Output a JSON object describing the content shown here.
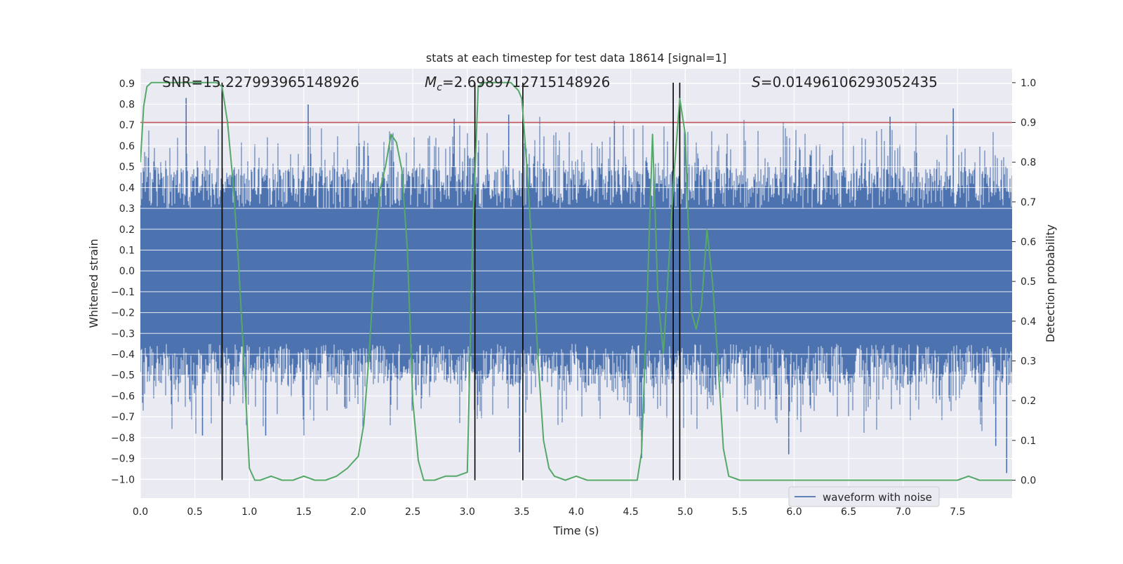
{
  "chart_data": {
    "type": "line",
    "title": "stats at each timestep for test data 18614 [signal=1]",
    "xlabel": "Time (s)",
    "ylabel": "Whitened strain",
    "ylabel_right": "Detection probability",
    "xlim": [
      0.0,
      8.0
    ],
    "ylim": [
      -1.09,
      0.97
    ],
    "ylim_right": [
      -0.045,
      1.035
    ],
    "x_ticks": [
      "0.0",
      "0.5",
      "1.0",
      "1.5",
      "2.0",
      "2.5",
      "3.0",
      "3.5",
      "4.0",
      "4.5",
      "5.0",
      "5.5",
      "6.0",
      "6.5",
      "7.0",
      "7.5"
    ],
    "y_ticks": [
      "0.9",
      "0.8",
      "0.7",
      "0.6",
      "0.5",
      "0.4",
      "0.3",
      "0.2",
      "0.1",
      "0.0",
      "−0.1",
      "−0.2",
      "−0.3",
      "−0.4",
      "−0.5",
      "−0.6",
      "−0.7",
      "−0.8",
      "−0.9",
      "−1.0"
    ],
    "y_right_ticks": [
      "1.0",
      "0.9",
      "0.8",
      "0.7",
      "0.6",
      "0.5",
      "0.4",
      "0.3",
      "0.2",
      "0.1",
      "0.0"
    ],
    "annotations": {
      "snr": "SNR=15.227993965148926",
      "mc_symbol": "M",
      "mc_subscript": "c",
      "mc_value": "=2.6989712715148926",
      "s_symbol": "S",
      "s_value": "=0.01496106293052435"
    },
    "threshold": {
      "value": 0.9,
      "axis": "right",
      "color": "#c44e52"
    },
    "event_lines_x": [
      0.75,
      3.07,
      3.51,
      4.89,
      4.95
    ],
    "legend": {
      "label": "waveform with noise",
      "placement": "lower-right"
    },
    "series": [
      {
        "name": "waveform with noise",
        "axis": "left",
        "color": "#4c72b0",
        "render": "noise-band",
        "core_range": [
          -0.35,
          0.3
        ],
        "peak_spikes": [
          {
            "x": 0.42,
            "y": 0.83
          },
          {
            "x": 1.54,
            "y": 0.8
          },
          {
            "x": 2.88,
            "y": 0.73
          },
          {
            "x": 3.38,
            "y": 0.75
          },
          {
            "x": 4.35,
            "y": 0.72
          },
          {
            "x": 4.95,
            "y": 0.77
          },
          {
            "x": 6.88,
            "y": 0.74
          },
          {
            "x": 7.46,
            "y": 0.78
          },
          {
            "x": 3.48,
            "y": -0.87
          },
          {
            "x": 4.6,
            "y": -0.9
          },
          {
            "x": 5.95,
            "y": -0.88
          },
          {
            "x": 7.95,
            "y": -0.97
          },
          {
            "x": 0.57,
            "y": -0.79
          },
          {
            "x": 1.15,
            "y": -0.79
          },
          {
            "x": 7.85,
            "y": -0.84
          }
        ]
      },
      {
        "name": "",
        "axis": "right",
        "color": "#55a868",
        "x": [
          0.0,
          0.03,
          0.06,
          0.1,
          0.3,
          0.5,
          0.7,
          0.75,
          0.8,
          0.85,
          0.9,
          0.95,
          1.0,
          1.05,
          1.1,
          1.2,
          1.3,
          1.4,
          1.5,
          1.6,
          1.7,
          1.8,
          1.9,
          2.0,
          2.05,
          2.1,
          2.15,
          2.2,
          2.25,
          2.3,
          2.35,
          2.4,
          2.45,
          2.5,
          2.55,
          2.6,
          2.7,
          2.8,
          2.9,
          3.0,
          3.05,
          3.1,
          3.15,
          3.2,
          3.3,
          3.4,
          3.47,
          3.5,
          3.55,
          3.6,
          3.65,
          3.7,
          3.75,
          3.8,
          3.9,
          4.0,
          4.1,
          4.2,
          4.3,
          4.4,
          4.5,
          4.56,
          4.6,
          4.65,
          4.7,
          4.75,
          4.8,
          4.85,
          4.9,
          4.95,
          5.0,
          5.02,
          5.06,
          5.1,
          5.15,
          5.2,
          5.25,
          5.3,
          5.35,
          5.4,
          5.5,
          6.0,
          6.5,
          7.0,
          7.3,
          7.5,
          7.6,
          7.7,
          8.0
        ],
        "y": [
          0.8,
          0.94,
          0.99,
          1.0,
          1.0,
          1.0,
          1.0,
          0.99,
          0.9,
          0.75,
          0.55,
          0.3,
          0.03,
          0.0,
          0.0,
          0.01,
          0.0,
          0.0,
          0.01,
          0.0,
          0.0,
          0.01,
          0.03,
          0.06,
          0.14,
          0.32,
          0.55,
          0.73,
          0.79,
          0.87,
          0.85,
          0.78,
          0.58,
          0.2,
          0.05,
          0.0,
          0.0,
          0.01,
          0.01,
          0.02,
          0.62,
          0.99,
          1.0,
          1.0,
          1.0,
          1.0,
          0.98,
          0.96,
          0.78,
          0.55,
          0.3,
          0.1,
          0.03,
          0.01,
          0.0,
          0.01,
          0.0,
          0.0,
          0.0,
          0.0,
          0.0,
          0.0,
          0.07,
          0.45,
          0.87,
          0.46,
          0.32,
          0.55,
          0.78,
          0.96,
          0.87,
          0.7,
          0.42,
          0.38,
          0.44,
          0.63,
          0.5,
          0.3,
          0.08,
          0.01,
          0.0,
          0.0,
          0.0,
          0.0,
          0.0,
          0.0,
          0.01,
          0.0,
          0.0
        ]
      }
    ]
  }
}
